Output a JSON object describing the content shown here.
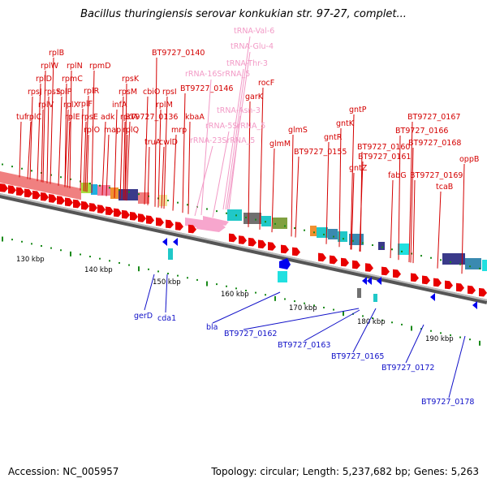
{
  "title": "Bacillus thuringiensis serovar konkukian str. 97-27, complet...",
  "footer": {
    "accession": "Accession: NC_005957",
    "info": "Topology: circular; Length: 5,237,682 bp; Genes: 5,263"
  },
  "colors": {
    "forward_gene": "#e80000",
    "reverse_gene": "#0000ee",
    "rna_gene": "#f7a6cd",
    "forward_label": "#d40000",
    "reverse_label": "#1010c8",
    "rna_label": "#f29ac6",
    "backbone": "#9a9a9a",
    "tick_marks": "#1a8a1a"
  },
  "forward_labels": [
    "rplB",
    "rplW",
    "rplN",
    "rplD",
    "rpmD",
    "rpmC",
    "rplR",
    "rpsJ",
    "rplV",
    "rplP",
    "rplF",
    "rpsS",
    "rplX",
    "rpsE",
    "tuf",
    "rplC",
    "rplE",
    "rplO",
    "adk",
    "infA",
    "rpsK",
    "rpsM",
    "map",
    "rpoA",
    "cbiO",
    "rplQ",
    "truA",
    "rpsI",
    "rplM",
    "kbaA",
    "mrp",
    "cwlD",
    "BT9727_0140",
    "BT9727_0136",
    "BT9727_0146",
    "garK",
    "rocF",
    "glmM",
    "glmS",
    "BT9727_0155",
    "gntR",
    "gntK",
    "gntP",
    "gntZ",
    "BT9727_0160",
    "BT9727_0161",
    "fabG",
    "BT9727_0166",
    "BT9727_0167",
    "BT9727_0168",
    "BT9727_0169",
    "tcaB",
    "oppB"
  ],
  "rna_labels": [
    "tRNA-Val-6",
    "tRNA-Glu-4",
    "tRNA-Thr-3",
    "rRNA-16SrRNA_5",
    "tRNA-Asn-3",
    "rRNA-5SrRNA_5",
    "rRNA-23SrRNA_5"
  ],
  "reverse_labels": [
    "gerD",
    "cda1",
    "bla",
    "BT9727_0162",
    "BT9727_0163",
    "BT9727_0165",
    "BT9727_0172",
    "BT9727_0178"
  ],
  "ticks": [
    "130 kbp",
    "140 kbp",
    "150 kbp",
    "160 kbp",
    "170 kbp",
    "180 kbp",
    "190 kbp"
  ]
}
